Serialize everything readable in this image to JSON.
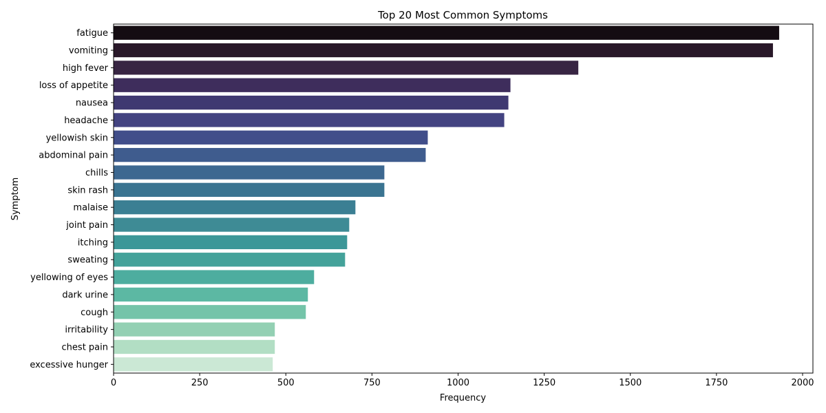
{
  "chart_data": {
    "type": "bar",
    "orientation": "horizontal",
    "title": "Top 20 Most Common Symptoms",
    "xlabel": "Frequency",
    "ylabel": "Symptom",
    "xlim": [
      0,
      2030
    ],
    "xticks": [
      0,
      250,
      500,
      750,
      1000,
      1250,
      1500,
      1750,
      2000
    ],
    "grid": false,
    "legend": "none",
    "palette": "mako_r",
    "categories": [
      "fatigue",
      "vomiting",
      "high fever",
      "loss of appetite",
      "nausea",
      "headache",
      "yellowish skin",
      "abdominal pain",
      "chills",
      "skin rash",
      "malaise",
      "joint pain",
      "itching",
      "sweating",
      "yellowing of eyes",
      "dark urine",
      "cough",
      "irritability",
      "chest pain",
      "excessive hunger"
    ],
    "values": [
      1932,
      1914,
      1349,
      1152,
      1146,
      1134,
      912,
      906,
      786,
      786,
      702,
      684,
      678,
      672,
      582,
      564,
      558,
      468,
      468,
      462
    ],
    "colors": [
      "#140c12",
      "#291829",
      "#382543",
      "#3e2d5c",
      "#3f3971",
      "#434381",
      "#414e8a",
      "#3f5c8e",
      "#3d6890",
      "#3a7491",
      "#3b7f93",
      "#3e8b95",
      "#3c9798",
      "#44a29a",
      "#4dad9f",
      "#5cb8a3",
      "#74c4a9",
      "#93d0b3",
      "#b2dec4",
      "#cbe8d5"
    ]
  }
}
